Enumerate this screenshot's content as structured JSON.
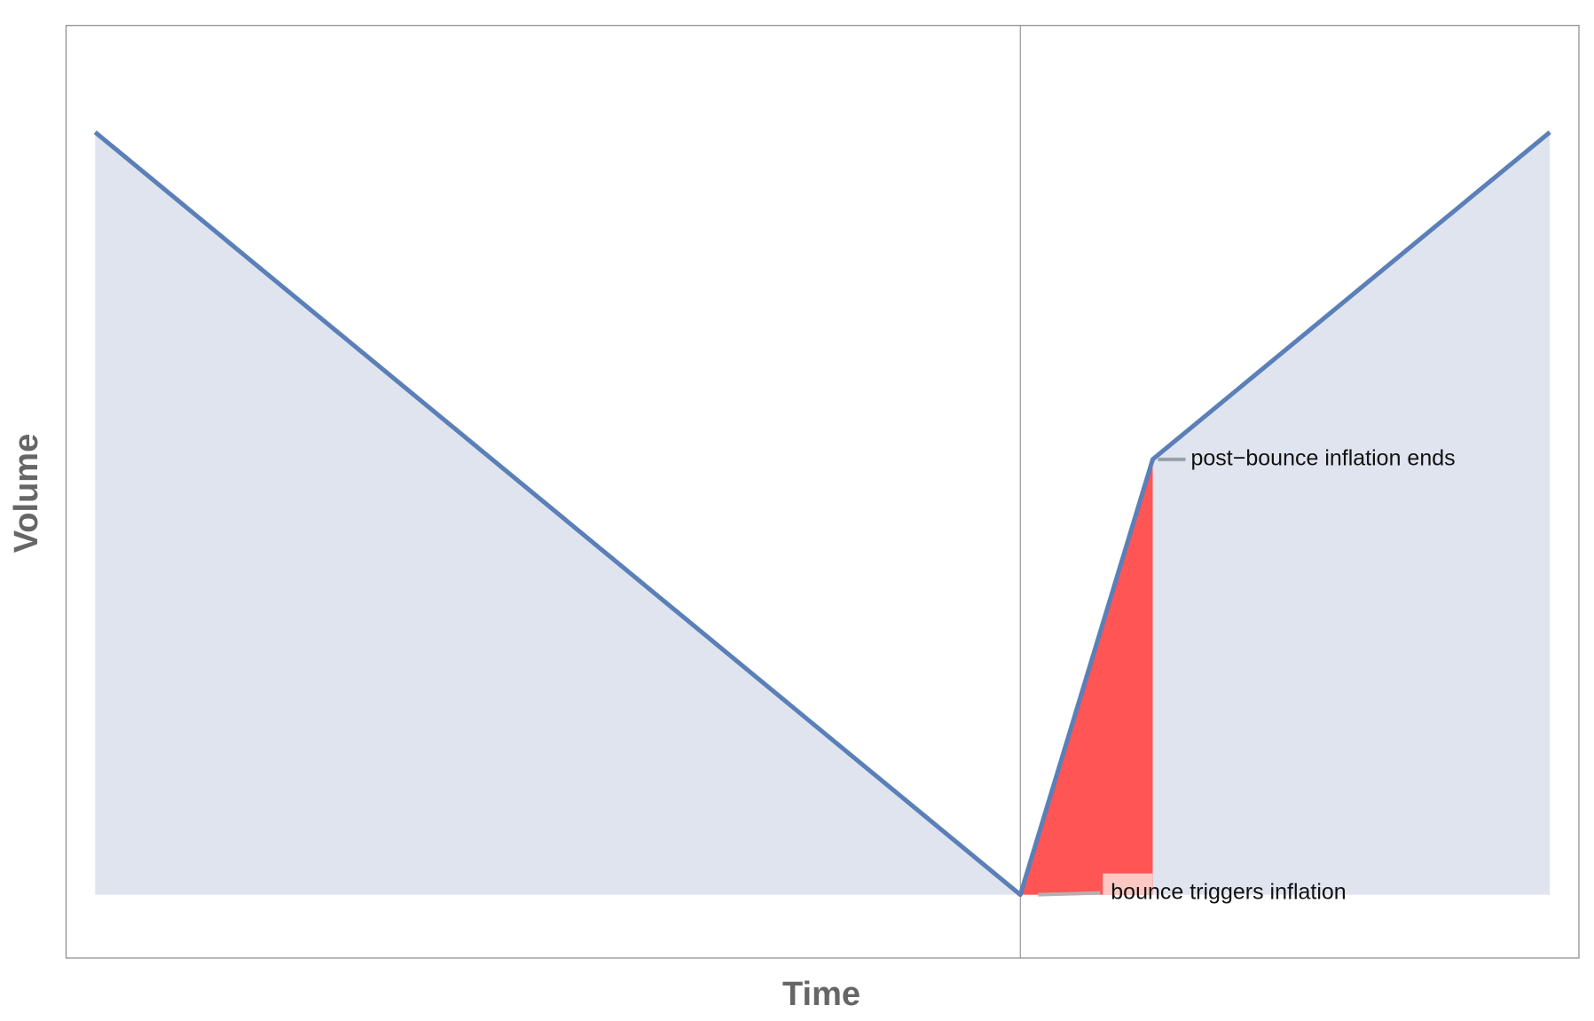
{
  "chart_data": {
    "type": "line",
    "x_label": "Time",
    "y_label": "Volume",
    "x": [
      0,
      0.636,
      0.727,
      1
    ],
    "series": [
      {
        "color": "#5b7fb8",
        "fill": "#dfe4ef",
        "values": [
          1,
          0,
          0.571,
          1
        ]
      }
    ],
    "xlim": [
      -0.02,
      1.02
    ],
    "ylim": [
      -0.083,
      1.14
    ],
    "vline": 0.636,
    "highlight": {
      "from": 0.636,
      "to": 0.727,
      "color": "#ff5555"
    },
    "annotations": [
      {
        "text": "post−bounce inflation ends",
        "x": 0.727,
        "y": 0.571
      },
      {
        "text": "bounce triggers inflation",
        "x": 0.636,
        "y": 0
      }
    ]
  }
}
